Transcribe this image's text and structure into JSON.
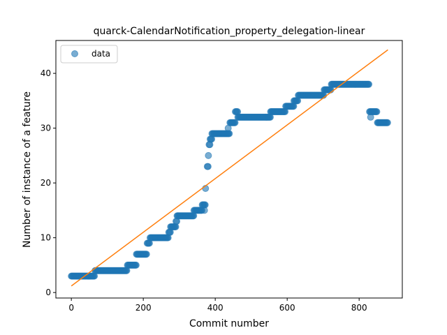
{
  "chart_data": {
    "type": "scatter",
    "title": "quarck-CalendarNotification_property_delegation-linear",
    "xlabel": "Commit number",
    "ylabel": "Number of instance of a feature",
    "xlim": [
      -43,
      920
    ],
    "ylim": [
      -1,
      46
    ],
    "xticks": [
      0,
      200,
      400,
      600,
      800
    ],
    "yticks": [
      0,
      10,
      20,
      30,
      40
    ],
    "grid": false,
    "legend_position": "upper-left",
    "colors": {
      "scatter": "#1f77b4",
      "fit_line": "#ff7f0e"
    },
    "series": [
      {
        "name": "data",
        "kind": "scatter",
        "segments": [
          [
            0,
            65,
            3
          ],
          [
            66,
            155,
            4
          ],
          [
            156,
            180,
            5
          ],
          [
            181,
            210,
            7
          ],
          [
            211,
            218,
            9
          ],
          [
            219,
            270,
            10
          ],
          [
            271,
            275,
            11
          ],
          [
            276,
            290,
            12
          ],
          [
            291,
            293,
            13
          ],
          [
            294,
            340,
            14
          ],
          [
            341,
            363,
            15
          ],
          [
            364,
            372,
            16
          ],
          [
            378,
            380,
            23
          ],
          [
            381,
            382,
            25
          ],
          [
            383,
            385,
            27
          ],
          [
            386,
            390,
            28
          ],
          [
            391,
            440,
            29
          ],
          [
            441,
            455,
            31
          ],
          [
            456,
            462,
            33
          ],
          [
            463,
            553,
            32
          ],
          [
            554,
            595,
            33
          ],
          [
            596,
            618,
            34
          ],
          [
            619,
            630,
            35
          ],
          [
            631,
            702,
            36
          ],
          [
            703,
            722,
            37
          ],
          [
            723,
            828,
            38
          ],
          [
            829,
            850,
            33
          ],
          [
            851,
            880,
            31
          ]
        ],
        "points": [
          [
            370,
            15
          ],
          [
            373,
            19
          ],
          [
            436,
            30
          ],
          [
            832,
            32
          ]
        ]
      },
      {
        "name": "",
        "kind": "line",
        "x": [
          0,
          880
        ],
        "y": [
          1.2,
          44.3
        ]
      }
    ]
  }
}
